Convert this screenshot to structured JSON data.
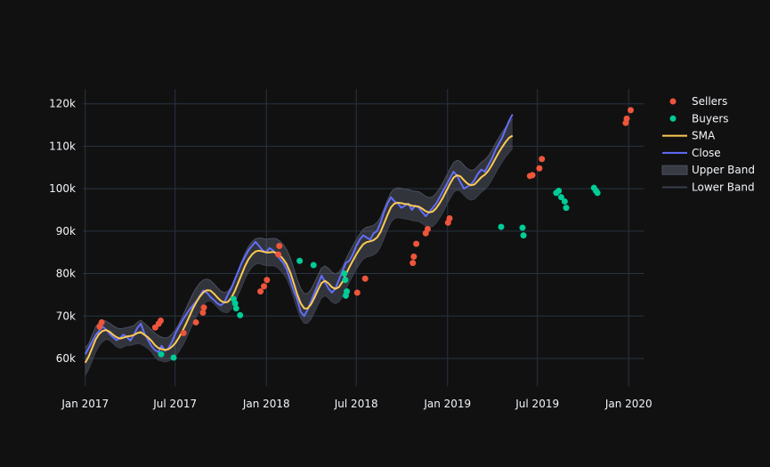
{
  "chart_data": {
    "type": "line",
    "title": "",
    "xlabel": "",
    "ylabel": "",
    "x_start": "2017-01-01",
    "x_step_days": 7,
    "xlim": [
      "2016-12-27",
      "2020-01-31"
    ],
    "ylim": [
      53500,
      123500
    ],
    "x_ticks": [
      {
        "date": "2017-01-01",
        "label": "Jan 2017"
      },
      {
        "date": "2017-07-01",
        "label": "Jul 2017"
      },
      {
        "date": "2018-01-01",
        "label": "Jan 2018"
      },
      {
        "date": "2018-07-01",
        "label": "Jul 2018"
      },
      {
        "date": "2019-01-01",
        "label": "Jan 2019"
      },
      {
        "date": "2019-07-01",
        "label": "Jul 2019"
      },
      {
        "date": "2020-01-01",
        "label": "Jan 2020"
      }
    ],
    "y_ticks": [
      {
        "value": 60000,
        "label": "60k"
      },
      {
        "value": 70000,
        "label": "70k"
      },
      {
        "value": 80000,
        "label": "80k"
      },
      {
        "value": 90000,
        "label": "90k"
      },
      {
        "value": 100000,
        "label": "100k"
      },
      {
        "value": 110000,
        "label": "110k"
      },
      {
        "value": 120000,
        "label": "120k"
      }
    ],
    "legend": {
      "position": "top-right",
      "items": [
        {
          "name": "Sellers",
          "symbol": "marker",
          "color": "#ef553b"
        },
        {
          "name": "Buyers",
          "symbol": "marker",
          "color": "#00cc96"
        },
        {
          "name": "SMA",
          "symbol": "line",
          "color": "#fecb52"
        },
        {
          "name": "Close",
          "symbol": "line",
          "color": "#636efa"
        },
        {
          "name": "Upper Band",
          "symbol": "fill",
          "color": "#4a5061"
        },
        {
          "name": "Lower Band",
          "symbol": "line",
          "color": "#3a3f4d"
        }
      ]
    },
    "series": [
      {
        "name": "Close",
        "color": "#636efa",
        "values": [
          61000,
          62500,
          64000,
          65500,
          66500,
          67500,
          66800,
          65800,
          65000,
          64300,
          64800,
          65600,
          65000,
          64200,
          65600,
          67200,
          68200,
          66000,
          64500,
          63000,
          62000,
          61500,
          63000,
          61800,
          62500,
          64000,
          66000,
          67500,
          69000,
          70300,
          71500,
          72500,
          73500,
          74800,
          76000,
          75500,
          74500,
          73800,
          73000,
          72500,
          73200,
          75000,
          76500,
          78500,
          80500,
          82500,
          84000,
          85500,
          86500,
          87500,
          86500,
          85500,
          85000,
          86000,
          85500,
          84500,
          83500,
          82500,
          81000,
          78500,
          76000,
          74000,
          71000,
          70000,
          71500,
          73500,
          75500,
          77500,
          79500,
          78000,
          76500,
          75500,
          76500,
          78500,
          80500,
          82500,
          83000,
          84500,
          86500,
          88000,
          89000,
          88500,
          88000,
          89500,
          90000,
          92000,
          94500,
          96500,
          98000,
          97000,
          96500,
          95500,
          96000,
          96500,
          95000,
          96000,
          95500,
          94500,
          93500,
          94500,
          95500,
          96500,
          98000,
          99500,
          101000,
          102500,
          104000,
          103000,
          101500,
          100000,
          100500,
          101000,
          102000,
          103500,
          104500,
          104000,
          105500,
          107000,
          109000,
          110500,
          112000,
          114000,
          116000,
          117500
        ]
      },
      {
        "name": "SMA",
        "color": "#fecb52",
        "values": [
          59000,
          60500,
          62500,
          64500,
          65800,
          66500,
          66700,
          66300,
          65600,
          65000,
          64700,
          64900,
          65200,
          65300,
          65500,
          66000,
          66200,
          65600,
          65000,
          64200,
          63200,
          62500,
          62200,
          62000,
          62200,
          62800,
          63700,
          65000,
          66500,
          68200,
          70000,
          71800,
          73300,
          74600,
          75600,
          76100,
          76000,
          75300,
          74400,
          73600,
          73200,
          73300,
          74200,
          75800,
          77800,
          79800,
          81800,
          83400,
          84500,
          85200,
          85400,
          85200,
          85000,
          85000,
          85100,
          84900,
          84300,
          83400,
          82200,
          80300,
          77800,
          75200,
          73000,
          71800,
          71800,
          72800,
          74400,
          76200,
          77800,
          78300,
          77700,
          76800,
          76400,
          76800,
          78000,
          79800,
          81500,
          83000,
          84500,
          85800,
          86900,
          87400,
          87600,
          87900,
          88500,
          89800,
          91800,
          93800,
          95600,
          96500,
          96700,
          96600,
          96400,
          96300,
          96000,
          95900,
          95800,
          95300,
          94700,
          94400,
          94600,
          95400,
          96600,
          98000,
          99600,
          101200,
          102600,
          103200,
          102900,
          102000,
          101200,
          100800,
          101000,
          101800,
          102700,
          103300,
          104200,
          105500,
          107000,
          108500,
          109800,
          111000,
          112000,
          112500
        ]
      }
    ],
    "bands": {
      "upper": [
        62500,
        63500,
        65500,
        67500,
        68500,
        69000,
        68800,
        68300,
        67700,
        67200,
        67000,
        67100,
        67300,
        67500,
        67700,
        68500,
        69000,
        68300,
        67600,
        66800,
        66000,
        65400,
        65000,
        64800,
        65000,
        65800,
        66800,
        68300,
        70000,
        71800,
        73600,
        75300,
        76700,
        77800,
        78500,
        78700,
        78400,
        77600,
        76700,
        75900,
        75500,
        75800,
        76800,
        78500,
        80600,
        82800,
        84800,
        86400,
        87500,
        88200,
        88400,
        88300,
        88100,
        88200,
        88300,
        88200,
        87700,
        86800,
        85600,
        83800,
        81300,
        78700,
        76500,
        75300,
        75300,
        76300,
        77900,
        79700,
        81300,
        81800,
        81200,
        80300,
        79900,
        80300,
        81500,
        83300,
        85000,
        86500,
        88000,
        89300,
        90400,
        90900,
        91100,
        91400,
        92000,
        93300,
        95300,
        97300,
        99100,
        100000,
        100200,
        100100,
        99900,
        99800,
        99500,
        99400,
        99300,
        98800,
        98200,
        97900,
        98100,
        98900,
        100100,
        101500,
        103100,
        104700,
        106100,
        106700,
        106400,
        105500,
        104700,
        104300,
        104500,
        105300,
        106200,
        106800,
        107700,
        109000,
        110500,
        112000,
        113300,
        114500,
        115500,
        116500
      ],
      "lower": [
        56000,
        57500,
        59500,
        61500,
        63000,
        64000,
        64500,
        64300,
        63500,
        62800,
        62400,
        62700,
        63100,
        63100,
        63300,
        63500,
        63400,
        62900,
        62400,
        61600,
        60400,
        59600,
        59400,
        59200,
        59400,
        59800,
        60600,
        61700,
        63000,
        64600,
        66400,
        68300,
        69900,
        71400,
        72700,
        73500,
        73600,
        73000,
        72100,
        71300,
        70900,
        70800,
        71600,
        73100,
        75000,
        76800,
        78800,
        80400,
        81500,
        82200,
        82400,
        82100,
        81900,
        81800,
        81900,
        81600,
        80900,
        80000,
        78800,
        76800,
        74300,
        71700,
        69500,
        68300,
        68300,
        69300,
        70900,
        72700,
        74300,
        74800,
        74200,
        73300,
        72900,
        73300,
        74500,
        76300,
        78000,
        79500,
        81000,
        82300,
        83400,
        83900,
        84100,
        84400,
        85000,
        86300,
        88300,
        90300,
        92100,
        93000,
        93200,
        93100,
        92900,
        92800,
        92500,
        92400,
        92300,
        91800,
        91200,
        90900,
        91100,
        91900,
        93100,
        94500,
        96100,
        97700,
        99100,
        99700,
        99400,
        98500,
        97700,
        97300,
        97500,
        98300,
        99200,
        99800,
        100700,
        102000,
        103500,
        105000,
        106300,
        107500,
        108500,
        109500
      ]
    },
    "markers": {
      "sellers": [
        {
          "date": "2017-01-30",
          "value": 67500
        },
        {
          "date": "2017-02-03",
          "value": 68500
        },
        {
          "date": "2017-05-22",
          "value": 67300
        },
        {
          "date": "2017-05-29",
          "value": 68200
        },
        {
          "date": "2017-06-02",
          "value": 68900
        },
        {
          "date": "2017-07-18",
          "value": 66000
        },
        {
          "date": "2017-08-12",
          "value": 68500
        },
        {
          "date": "2017-08-26",
          "value": 70800
        },
        {
          "date": "2017-08-28",
          "value": 72000
        },
        {
          "date": "2017-12-20",
          "value": 75800
        },
        {
          "date": "2017-12-27",
          "value": 77000
        },
        {
          "date": "2018-01-02",
          "value": 78500
        },
        {
          "date": "2018-01-25",
          "value": 84500
        },
        {
          "date": "2018-01-27",
          "value": 86500
        },
        {
          "date": "2018-07-03",
          "value": 75500
        },
        {
          "date": "2018-07-19",
          "value": 78800
        },
        {
          "date": "2018-10-23",
          "value": 82500
        },
        {
          "date": "2018-10-25",
          "value": 84000
        },
        {
          "date": "2018-10-30",
          "value": 87000
        },
        {
          "date": "2018-11-18",
          "value": 89500
        },
        {
          "date": "2018-11-22",
          "value": 90500
        },
        {
          "date": "2019-01-02",
          "value": 92000
        },
        {
          "date": "2019-01-05",
          "value": 93000
        },
        {
          "date": "2019-06-16",
          "value": 103000
        },
        {
          "date": "2019-06-21",
          "value": 103200
        },
        {
          "date": "2019-07-05",
          "value": 104800
        },
        {
          "date": "2019-07-10",
          "value": 107000
        },
        {
          "date": "2019-12-26",
          "value": 115500
        },
        {
          "date": "2019-12-28",
          "value": 116500
        },
        {
          "date": "2020-01-05",
          "value": 118500
        }
      ],
      "buyers": [
        {
          "date": "2017-06-03",
          "value": 61000
        },
        {
          "date": "2017-06-28",
          "value": 60200
        },
        {
          "date": "2017-10-27",
          "value": 74000
        },
        {
          "date": "2017-10-30",
          "value": 73000
        },
        {
          "date": "2017-11-01",
          "value": 71800
        },
        {
          "date": "2017-11-09",
          "value": 70200
        },
        {
          "date": "2018-03-09",
          "value": 83000
        },
        {
          "date": "2018-04-06",
          "value": 82000
        },
        {
          "date": "2018-06-07",
          "value": 80000
        },
        {
          "date": "2018-06-09",
          "value": 78500
        },
        {
          "date": "2018-06-12",
          "value": 75800
        },
        {
          "date": "2018-06-10",
          "value": 74800
        },
        {
          "date": "2019-04-19",
          "value": 91000
        },
        {
          "date": "2019-06-01",
          "value": 90800
        },
        {
          "date": "2019-06-03",
          "value": 89000
        },
        {
          "date": "2019-08-08",
          "value": 99000
        },
        {
          "date": "2019-08-13",
          "value": 99500
        },
        {
          "date": "2019-08-18",
          "value": 98000
        },
        {
          "date": "2019-08-25",
          "value": 97000
        },
        {
          "date": "2019-08-28",
          "value": 95500
        },
        {
          "date": "2019-10-23",
          "value": 100200
        },
        {
          "date": "2019-10-27",
          "value": 99500
        },
        {
          "date": "2019-10-30",
          "value": 99000
        }
      ]
    }
  }
}
